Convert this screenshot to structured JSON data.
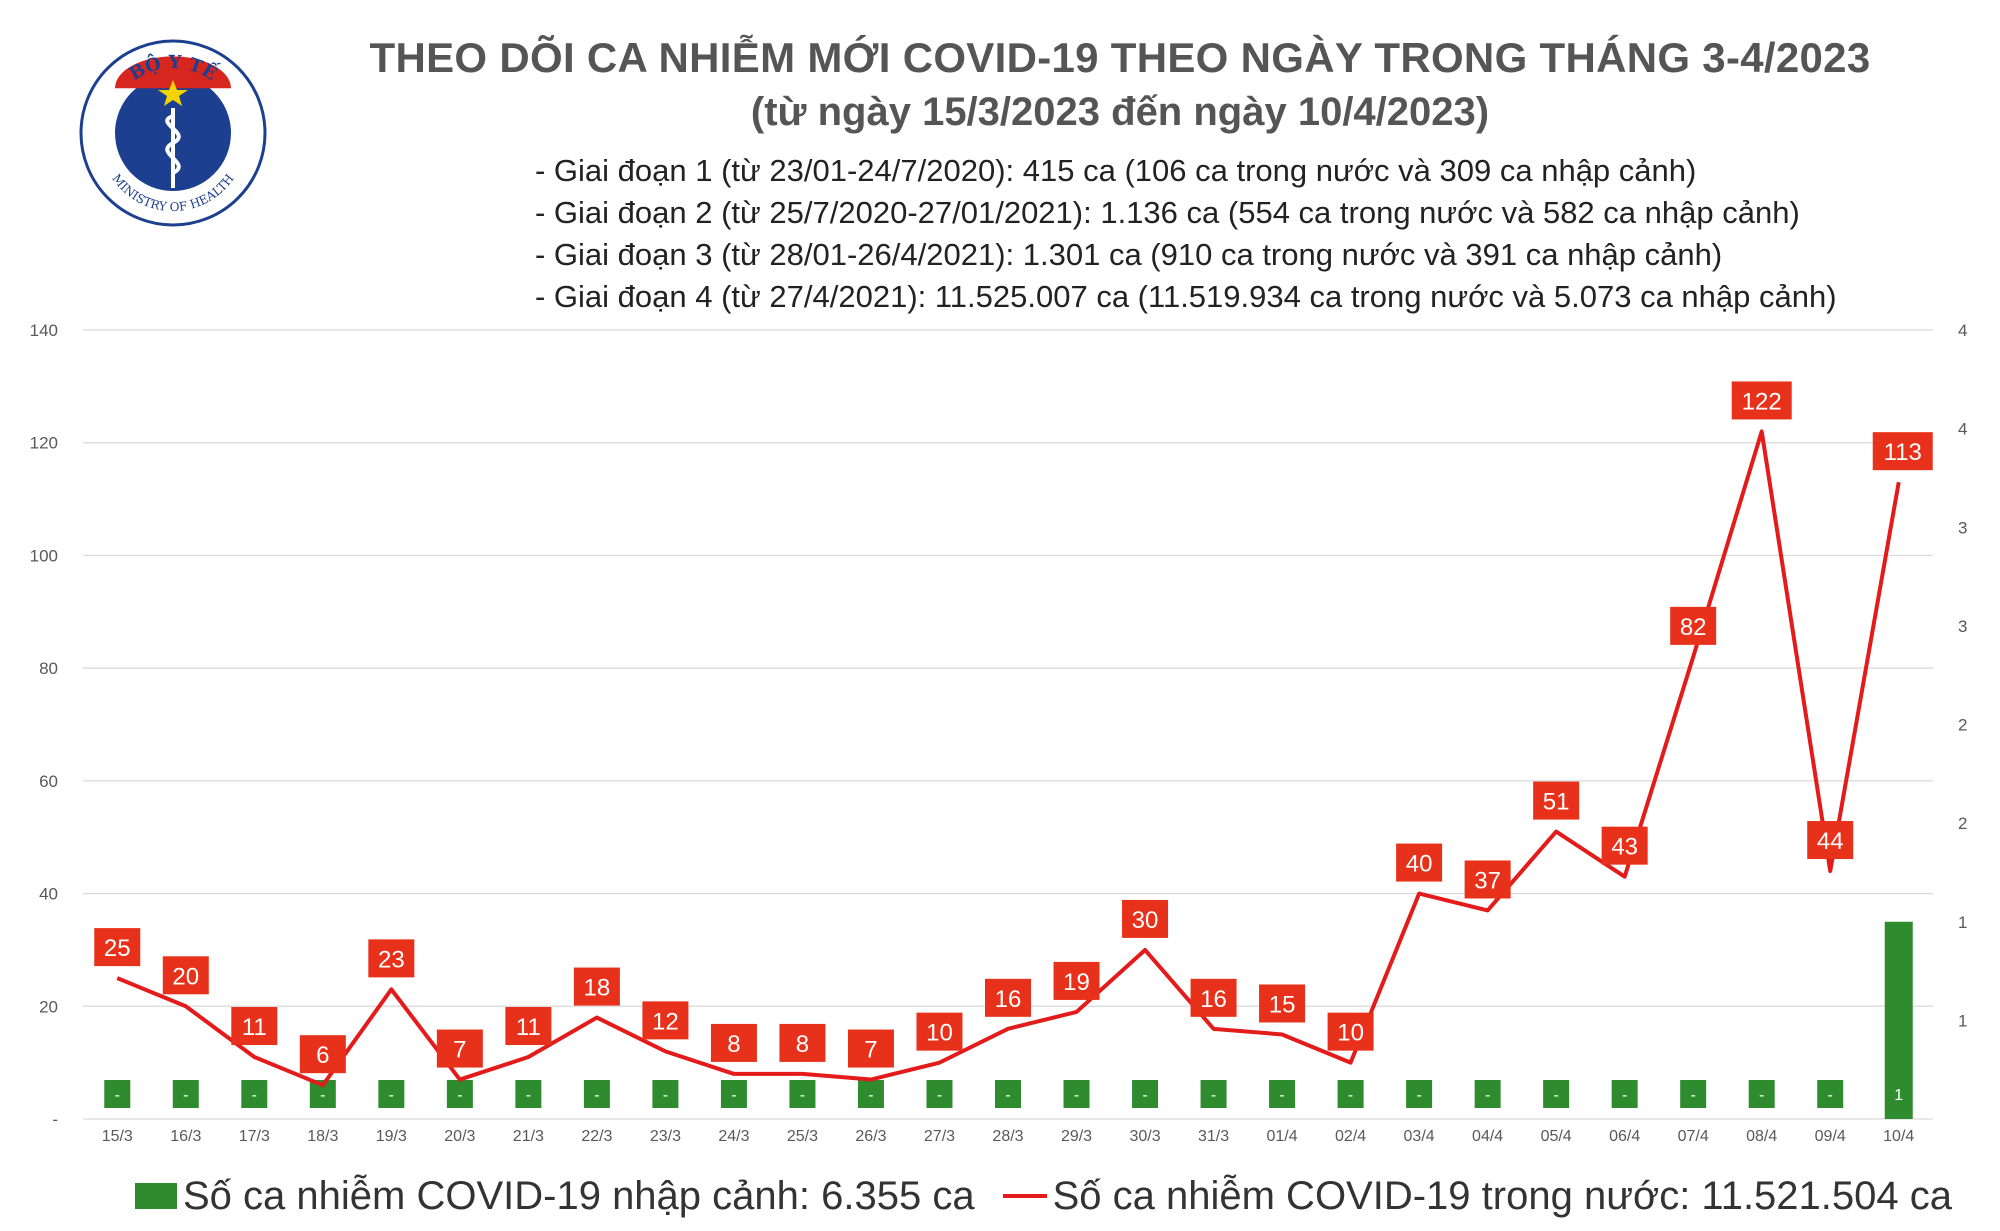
{
  "header": {
    "logo_text_top": "BỘ Y TẾ",
    "logo_text_bottom": "MINISTRY OF HEALTH",
    "title": "THEO DÕI CA NHIỄM MỚI COVID-19 THEO NGÀY TRONG THÁNG 3-4/2023",
    "subtitle": "(từ ngày 15/3/2023 đến ngày 10/4/2023)"
  },
  "stages": [
    "- Giai đoạn 1 (từ 23/01-24/7/2020): 415 ca (106 ca trong nước và 309 ca nhập cảnh)",
    "- Giai đoạn 2 (từ 25/7/2020-27/01/2021): 1.136 ca (554 ca trong nước và 582 ca nhập cảnh)",
    "- Giai đoạn 3 (từ 28/01-26/4/2021): 1.301 ca (910 ca trong nước và 391 ca nhập cảnh)",
    "- Giai đoạn 4 (từ 27/4/2021): 11.525.007 ca (11.519.934 ca trong nước và 5.073 ca nhập cảnh)"
  ],
  "legend": {
    "imported": "Số ca nhiễm COVID-19 nhập cảnh: 6.355 ca",
    "domestic": "Số ca nhiễm COVID-19 trong nước: 11.521.504 ca"
  },
  "colors": {
    "line": "#e31b1b",
    "label_box": "#e8311a",
    "bar": "#2e8b2e",
    "grid": "#d9d9d9",
    "axis_text": "#595959"
  },
  "chart_data": {
    "type": "bar+line",
    "categories": [
      "15/3",
      "16/3",
      "17/3",
      "18/3",
      "19/3",
      "20/3",
      "21/3",
      "22/3",
      "23/3",
      "24/3",
      "25/3",
      "26/3",
      "27/3",
      "28/3",
      "29/3",
      "30/3",
      "31/3",
      "01/4",
      "02/4",
      "03/4",
      "04/4",
      "05/4",
      "06/4",
      "07/4",
      "08/4",
      "09/4",
      "10/4"
    ],
    "left_axis": {
      "ticks": [
        "-",
        "20",
        "40",
        "60",
        "80",
        "100",
        "120",
        "140"
      ],
      "ylim": [
        0,
        140
      ]
    },
    "right_axis": {
      "ticks": [
        "1",
        "1",
        "2",
        "2",
        "3",
        "3",
        "4",
        "4"
      ],
      "ylim": [
        0,
        4
      ]
    },
    "series": [
      {
        "name": "Số ca nhiễm COVID-19 trong nước",
        "type": "line",
        "axis": "left",
        "values": [
          25,
          20,
          11,
          6,
          23,
          7,
          11,
          18,
          12,
          8,
          8,
          7,
          10,
          16,
          19,
          30,
          16,
          15,
          10,
          40,
          37,
          51,
          43,
          82,
          122,
          44,
          113
        ],
        "labels": [
          "25",
          "20",
          "11",
          "6",
          "23",
          "7",
          "11",
          "18",
          "12",
          "8",
          "8",
          "7",
          "10",
          "16",
          "19",
          "30",
          "16",
          "15",
          "10",
          "40",
          "37",
          "51",
          "43",
          "82",
          "122",
          "44",
          "113"
        ]
      },
      {
        "name": "Số ca nhiễm COVID-19 nhập cảnh",
        "type": "bar",
        "axis": "right",
        "values": [
          0,
          0,
          0,
          0,
          0,
          0,
          0,
          0,
          0,
          0,
          0,
          0,
          0,
          0,
          0,
          0,
          0,
          0,
          0,
          0,
          0,
          0,
          0,
          0,
          0,
          0,
          1
        ],
        "labels": [
          "-",
          "-",
          "-",
          "-",
          "-",
          "-",
          "-",
          "-",
          "-",
          "-",
          "-",
          "-",
          "-",
          "-",
          "-",
          "-",
          "-",
          "-",
          "-",
          "-",
          "-",
          "-",
          "-",
          "-",
          "-",
          "-",
          "1"
        ]
      }
    ],
    "grid": true,
    "legend_position": "bottom"
  }
}
